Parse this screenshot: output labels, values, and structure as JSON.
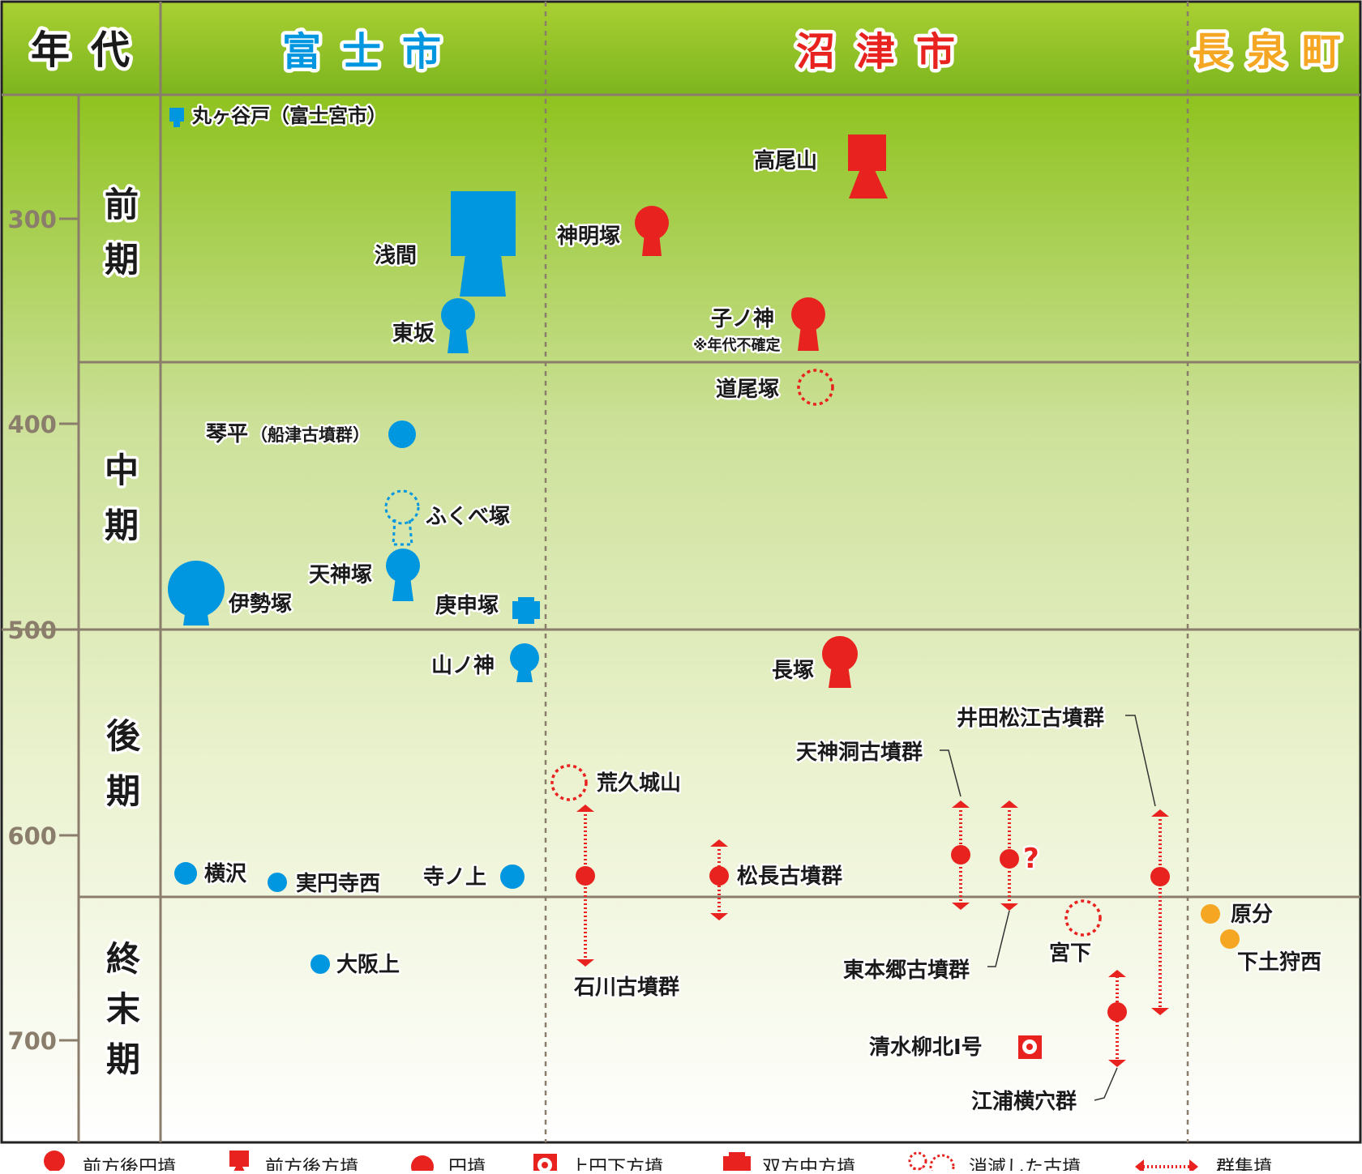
{
  "header": {
    "era": "年代",
    "fuji": "富士市",
    "numazu": "沼津市",
    "nagaizumi": "長泉町"
  },
  "colors": {
    "fuji": "#0097e0",
    "numazu": "#e8231f",
    "nagaizumi": "#f5a623",
    "grid": "#8b7d6b",
    "header_green": "#8fc31f"
  },
  "years": [
    "300",
    "400",
    "500",
    "600",
    "700"
  ],
  "periods": {
    "early": [
      "前",
      "期"
    ],
    "middle": [
      "中",
      "期"
    ],
    "late": [
      "後",
      "期"
    ],
    "final": [
      "終",
      "末",
      "期"
    ]
  },
  "sites": {
    "marugayado": "丸ヶ谷戸（富士宮市）",
    "sengen": "浅間",
    "higashisaka": "東坂",
    "kotohira": "琴平",
    "kotohira_group": "（船津古墳群）",
    "fukubezuka": "ふくべ塚",
    "tenjinzuka": "天神塚",
    "isezuka": "伊勢塚",
    "koshinzuka": "庚申塚",
    "yamanokami": "山ノ神",
    "yokosawa": "横沢",
    "jitsuenjinishi": "実円寺西",
    "teranoue": "寺ノ上",
    "osakaue": "大阪上",
    "takaoyama": "高尾山",
    "shinmeizuka": "神明塚",
    "nenokami": "子ノ神",
    "nenokami_note": "※年代不確定",
    "dobizuka": "道尾塚",
    "nagazuka": "長塚",
    "arakujoyama": "荒久城山",
    "ishikawa": "石川古墳群",
    "matsunaga": "松長古墳群",
    "tenjinbora": "天神洞古墳群",
    "higashihongo": "東本郷古墳群",
    "question": "?",
    "ida_matsue": "井田松江古墳群",
    "miyashita": "宮下",
    "shimizu": "清水柳北Ⅰ号",
    "eura": "江浦横穴群",
    "harabun": "原分",
    "shimotogari": "下土狩西"
  },
  "legend": {
    "zenpo_koen": "前方後円墳",
    "zenpo_koho": "前方後方墳",
    "enpun": "円墳",
    "joen_kaho": "上円下方墳",
    "soho_chuho": "双方中方墳",
    "shometsu": "消滅した古墳",
    "gunshu": "群集墳"
  }
}
